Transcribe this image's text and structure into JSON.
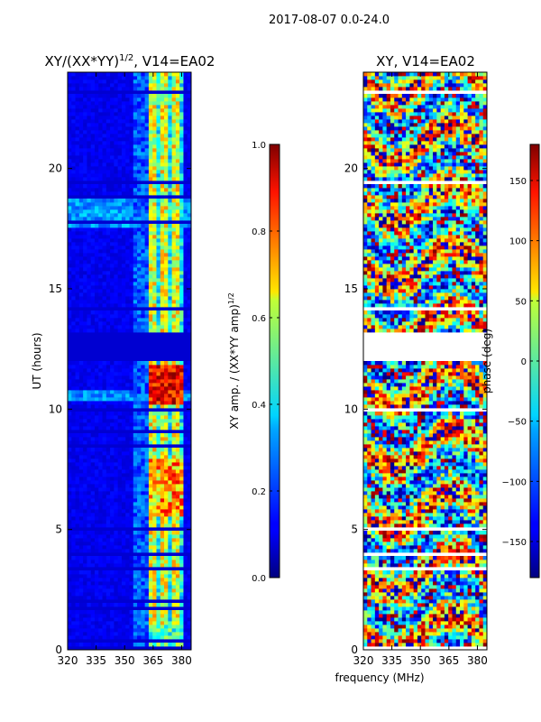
{
  "chart_data": {
    "suptitle": "2017-08-07 0.0-24.0",
    "shared_xlabel": "frequency (MHz)",
    "panels": [
      {
        "type": "heatmap",
        "title": "XY/(XX*YY)^1/2, V14=EA02",
        "title_main": "XY/(XX*YY)",
        "title_sup": "1/2",
        "title_tail": ", V14=EA02",
        "ylabel": "UT (hours)",
        "xlim": [
          320,
          385
        ],
        "ylim": [
          0,
          24
        ],
        "xticks": [
          320,
          335,
          350,
          365,
          380
        ],
        "yticks": [
          0,
          5,
          10,
          15,
          20
        ],
        "colormap": "jet",
        "colorbar": {
          "label": "XY amp. / (XX*YY amp)^1/2",
          "label_main": "XY amp. / (XX*YY amp)",
          "label_sup": "1/2",
          "range": [
            0.0,
            1.0
          ],
          "ticks": [
            "0.0",
            "0.2",
            "0.4",
            "0.6",
            "0.8",
            "1.0"
          ]
        },
        "features": {
          "background_value": 0.08,
          "active_band_mhz": [
            363,
            381
          ],
          "weak_region_mhz": [
            355,
            363
          ],
          "hot_hours": [
            10.2,
            11.9
          ],
          "warm_hours": [
            5.5,
            8.0
          ],
          "blank_gaps_hours": [
            [
              0.05,
              0.12
            ],
            [
              0.32,
              0.38
            ],
            [
              1.45,
              1.52
            ],
            [
              1.72,
              1.78
            ],
            [
              2.0,
              2.06
            ],
            [
              2.95,
              3.05
            ],
            [
              3.3,
              3.48
            ],
            [
              3.95,
              4.12
            ],
            [
              4.95,
              5.05
            ],
            [
              5.95,
              6.02
            ],
            [
              7.45,
              7.52
            ],
            [
              8.45,
              8.52
            ],
            [
              9.05,
              9.12
            ],
            [
              9.95,
              10.05
            ],
            [
              12.0,
              13.2
            ],
            [
              13.75,
              13.8
            ],
            [
              14.1,
              14.18
            ],
            [
              14.55,
              14.6
            ],
            [
              15.0,
              15.05
            ],
            [
              15.45,
              15.5
            ],
            [
              16.5,
              16.55
            ],
            [
              17.5,
              17.56
            ],
            [
              17.75,
              17.82
            ],
            [
              18.1,
              18.16
            ],
            [
              18.55,
              18.62
            ],
            [
              18.8,
              18.86
            ],
            [
              19.4,
              19.48
            ],
            [
              19.95,
              20.02
            ],
            [
              21.45,
              21.52
            ],
            [
              22.45,
              22.52
            ],
            [
              23.1,
              23.2
            ]
          ]
        }
      },
      {
        "type": "heatmap",
        "title": "XY, V14=EA02",
        "ylabel": "",
        "xlim": [
          320,
          385
        ],
        "ylim": [
          0,
          24
        ],
        "xticks": [
          320,
          335,
          350,
          365,
          380
        ],
        "yticks": [
          0,
          5,
          10,
          15,
          20
        ],
        "colormap": "jet",
        "colorbar": {
          "label": "phase (deg)",
          "range": [
            -180,
            180
          ],
          "ticks": [
            "−150",
            "−100",
            "−50",
            "0",
            "50",
            "100",
            "150"
          ]
        },
        "features": {
          "pattern": "noisy phase wrapping, horizontal striping",
          "blank_gaps_hours": [
            [
              0.05,
              0.12
            ],
            [
              1.5,
              1.56
            ],
            [
              2.95,
              3.05
            ],
            [
              3.3,
              3.48
            ],
            [
              3.95,
              4.12
            ],
            [
              4.95,
              5.05
            ],
            [
              9.95,
              10.05
            ],
            [
              12.0,
              13.2
            ],
            [
              14.1,
              14.18
            ],
            [
              15.45,
              15.5
            ],
            [
              17.5,
              17.56
            ],
            [
              18.55,
              18.62
            ],
            [
              19.4,
              19.48
            ],
            [
              21.45,
              21.52
            ],
            [
              23.1,
              23.2
            ]
          ]
        }
      }
    ]
  }
}
